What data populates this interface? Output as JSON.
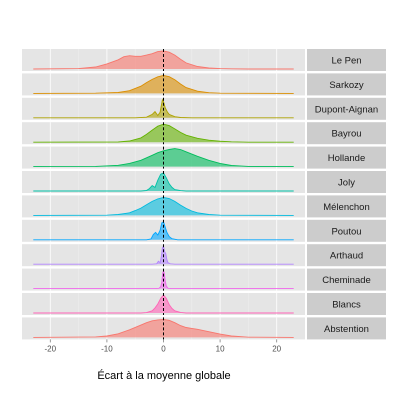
{
  "chart_data": {
    "type": "area",
    "title": "",
    "xlabel": "Écart à la moyenne globale",
    "ylabel": "",
    "xlim": [
      -25,
      25
    ],
    "x_ticks": [
      -20,
      -10,
      0,
      10,
      20
    ],
    "x_tick_labels": [
      "-20",
      "-10",
      "0",
      "10",
      "20"
    ],
    "reference_line_x": 0,
    "grid": true,
    "legend": "none",
    "facets": [
      {
        "name": "Le Pen",
        "color": "#F8766D",
        "x": [
          -23,
          -15,
          -12,
          -10,
          -8,
          -7,
          -6,
          -5,
          -4,
          -3,
          -2,
          -1,
          0,
          1,
          2,
          3,
          4,
          6,
          8,
          10,
          12,
          15,
          23
        ],
        "density": [
          0.0,
          0.02,
          0.1,
          0.25,
          0.45,
          0.6,
          0.65,
          0.62,
          0.62,
          0.68,
          0.75,
          0.85,
          0.88,
          0.82,
          0.68,
          0.48,
          0.3,
          0.12,
          0.05,
          0.02,
          0.01,
          0.0,
          0.0
        ]
      },
      {
        "name": "Sarkozy",
        "color": "#DB8E00",
        "x": [
          -23,
          -12,
          -8,
          -6,
          -4,
          -3,
          -2,
          -1,
          0,
          1,
          2,
          3,
          4,
          6,
          8,
          10,
          23
        ],
        "density": [
          0.0,
          0.01,
          0.05,
          0.15,
          0.4,
          0.6,
          0.78,
          0.92,
          1.0,
          0.93,
          0.76,
          0.52,
          0.32,
          0.12,
          0.04,
          0.01,
          0.0
        ]
      },
      {
        "name": "Dupont-Aignan",
        "color": "#AEA200",
        "x": [
          -23,
          -5,
          -3,
          -2,
          -1.5,
          -1,
          -0.6,
          -0.2,
          0,
          0.3,
          0.7,
          1,
          2,
          3,
          5,
          23
        ],
        "density": [
          0.0,
          0.0,
          0.05,
          0.3,
          0.55,
          0.2,
          0.5,
          1.6,
          1.45,
          0.9,
          0.5,
          0.3,
          0.1,
          0.03,
          0.0,
          0.0
        ]
      },
      {
        "name": "Bayrou",
        "color": "#64B200",
        "x": [
          -23,
          -8,
          -6,
          -4,
          -3,
          -2,
          -1,
          0,
          1,
          2,
          3,
          4,
          6,
          8,
          10,
          12,
          15,
          23
        ],
        "density": [
          0.0,
          0.01,
          0.06,
          0.22,
          0.4,
          0.62,
          0.82,
          0.92,
          0.85,
          0.68,
          0.5,
          0.36,
          0.2,
          0.1,
          0.05,
          0.02,
          0.0,
          0.0
        ]
      },
      {
        "name": "Hollande",
        "color": "#00BD5C",
        "x": [
          -23,
          -12,
          -8,
          -6,
          -4,
          -2,
          -1,
          0,
          1,
          2,
          3,
          4,
          6,
          8,
          10,
          12,
          15,
          23
        ],
        "density": [
          0.0,
          0.01,
          0.06,
          0.14,
          0.28,
          0.5,
          0.62,
          0.7,
          0.76,
          0.8,
          0.76,
          0.66,
          0.46,
          0.28,
          0.14,
          0.05,
          0.01,
          0.0
        ]
      },
      {
        "name": "Joly",
        "color": "#00C1A7",
        "x": [
          -23,
          -4,
          -3,
          -2.5,
          -2,
          -1.5,
          -1,
          -0.5,
          0,
          0.5,
          1,
          1.5,
          2,
          3,
          4,
          23
        ],
        "density": [
          0.0,
          0.0,
          0.04,
          0.2,
          0.45,
          0.3,
          0.9,
          1.4,
          1.5,
          1.1,
          0.6,
          0.3,
          0.12,
          0.03,
          0.0,
          0.0
        ]
      },
      {
        "name": "Mélenchon",
        "color": "#00BADE",
        "x": [
          -23,
          -10,
          -8,
          -6,
          -5,
          -4,
          -3,
          -2,
          -1,
          0,
          1,
          2,
          3,
          4,
          5,
          6,
          8,
          10,
          23
        ],
        "density": [
          0.0,
          0.01,
          0.05,
          0.14,
          0.26,
          0.4,
          0.58,
          0.76,
          0.9,
          0.98,
          0.92,
          0.76,
          0.56,
          0.38,
          0.24,
          0.14,
          0.05,
          0.01,
          0.0
        ]
      },
      {
        "name": "Poutou",
        "color": "#00A6FF",
        "x": [
          -23,
          -3,
          -2.2,
          -1.8,
          -1.4,
          -1,
          -0.6,
          -0.3,
          0,
          0.3,
          0.6,
          1,
          1.5,
          2.5,
          23
        ],
        "density": [
          0.0,
          0.0,
          0.08,
          0.5,
          0.7,
          0.45,
          0.9,
          1.6,
          1.7,
          1.2,
          0.7,
          0.3,
          0.1,
          0.0,
          0.0
        ]
      },
      {
        "name": "Arthaud",
        "color": "#B385FF",
        "x": [
          -23,
          -2,
          -1.2,
          -0.9,
          -0.6,
          -0.4,
          -0.2,
          0,
          0.2,
          0.4,
          0.6,
          0.8,
          1.2,
          2,
          23
        ],
        "density": [
          0.0,
          0.0,
          0.05,
          0.4,
          0.2,
          0.9,
          2.2,
          2.4,
          1.7,
          1.4,
          0.6,
          0.2,
          0.05,
          0.0,
          0.0
        ]
      },
      {
        "name": "Cheminade",
        "color": "#EF67EB",
        "x": [
          -23,
          -1.5,
          -0.8,
          -0.5,
          -0.3,
          -0.15,
          0,
          0.15,
          0.3,
          0.5,
          0.8,
          1.5,
          23
        ],
        "density": [
          0.0,
          0.0,
          0.05,
          0.3,
          1.0,
          2.4,
          2.8,
          2.4,
          1.2,
          0.4,
          0.05,
          0.0,
          0.0
        ]
      },
      {
        "name": "Blancs",
        "color": "#FF63B6",
        "x": [
          -23,
          -4,
          -3,
          -2,
          -1.5,
          -1,
          -0.5,
          0,
          0.5,
          1,
          1.5,
          2,
          3,
          4,
          23
        ],
        "density": [
          0.0,
          0.0,
          0.04,
          0.2,
          0.45,
          0.8,
          1.3,
          1.6,
          1.3,
          0.75,
          0.4,
          0.2,
          0.05,
          0.0,
          0.0
        ]
      },
      {
        "name": "Abstention",
        "color": "#F8766D",
        "x": [
          -23,
          -12,
          -10,
          -8,
          -6,
          -4,
          -3,
          -2,
          -1,
          0,
          1,
          2,
          3,
          4,
          5,
          6,
          8,
          10,
          12,
          15,
          23
        ],
        "density": [
          0.0,
          0.02,
          0.06,
          0.15,
          0.32,
          0.52,
          0.62,
          0.7,
          0.74,
          0.76,
          0.72,
          0.62,
          0.5,
          0.42,
          0.38,
          0.34,
          0.24,
          0.14,
          0.06,
          0.01,
          0.0
        ]
      }
    ]
  }
}
